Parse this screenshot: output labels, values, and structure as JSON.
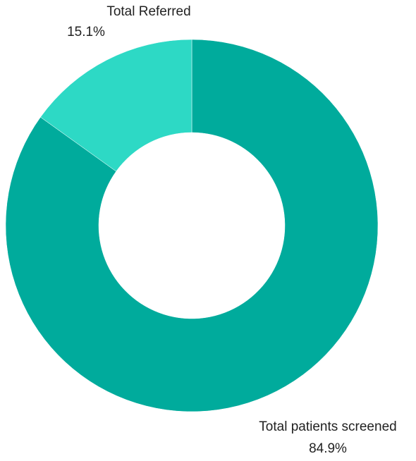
{
  "chart_data": {
    "type": "donut",
    "categories": [
      "Total patients screened",
      "Total Referred"
    ],
    "values": [
      84.9,
      15.1
    ],
    "value_labels": [
      "84.9%",
      "15.1%"
    ],
    "colors": [
      "#00ab9c",
      "#2dd9c5"
    ]
  }
}
